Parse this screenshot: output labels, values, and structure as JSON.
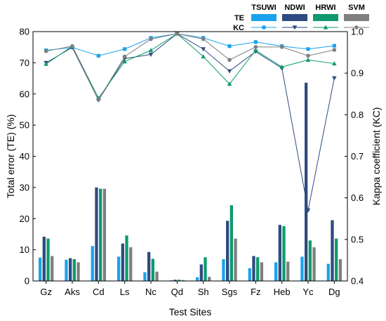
{
  "chart_data": {
    "type": "bar+line",
    "categories": [
      "Gz",
      "Aks",
      "Cd",
      "Ls",
      "Nc",
      "Qd",
      "Sh",
      "Sgs",
      "Fz",
      "Heb",
      "Yc",
      "Dg"
    ],
    "xlabel": "Test Sites",
    "ylabel_left": "Total error (TE) (%)",
    "ylabel_right": "Kappa coefficient (KC)",
    "ylim_left": [
      0,
      80
    ],
    "ylim_right": [
      0.4,
      1.0
    ],
    "yticks_left": [
      "0",
      "10",
      "20",
      "30",
      "40",
      "50",
      "60",
      "70",
      "80"
    ],
    "yticks_right": [
      "0.4",
      "0.5",
      "0.6",
      "0.7",
      "0.8",
      "0.9",
      "1.0"
    ],
    "legend": {
      "row_te_label": "TE",
      "row_kc_label": "KC",
      "placement": "top-right"
    },
    "methods": [
      {
        "name": "TSUWI",
        "color": "#1aa3ec",
        "marker": "square",
        "te": [
          7.5,
          6.8,
          11.2,
          7.8,
          2.8,
          0.2,
          1.2,
          7.0,
          4.1,
          6.0,
          7.8,
          5.5
        ],
        "kc": [
          0.955,
          0.962,
          0.942,
          0.958,
          0.985,
          0.995,
          0.985,
          0.965,
          0.975,
          0.965,
          0.958,
          0.966
        ]
      },
      {
        "name": "NDWI",
        "color": "#2e4a80",
        "marker": "triangle-down",
        "te": [
          14.2,
          7.3,
          30.0,
          12.0,
          9.3,
          0.4,
          5.3,
          19.3,
          8.0,
          18.0,
          63.6,
          19.5
        ],
        "kc": [
          0.925,
          0.962,
          0.835,
          0.935,
          0.945,
          0.995,
          0.958,
          0.905,
          0.952,
          0.912,
          0.57,
          0.888
        ]
      },
      {
        "name": "HRWI",
        "color": "#0e9a6e",
        "marker": "triangle-up",
        "te": [
          13.6,
          7.0,
          29.6,
          14.6,
          7.1,
          0.4,
          7.6,
          24.3,
          7.6,
          17.6,
          13.0,
          13.6
        ],
        "kc": [
          0.922,
          0.965,
          0.84,
          0.928,
          0.955,
          0.995,
          0.94,
          0.874,
          0.955,
          0.915,
          0.932,
          0.923
        ]
      },
      {
        "name": "SVM",
        "color": "#7f7f7f",
        "marker": "circle",
        "te": [
          8.0,
          6.0,
          29.6,
          10.8,
          3.0,
          0.3,
          1.3,
          13.6,
          6.0,
          6.2,
          10.8,
          7.0
        ],
        "kc": [
          0.953,
          0.965,
          0.836,
          0.94,
          0.982,
          0.995,
          0.982,
          0.932,
          0.963,
          0.963,
          0.942,
          0.956
        ]
      }
    ]
  }
}
